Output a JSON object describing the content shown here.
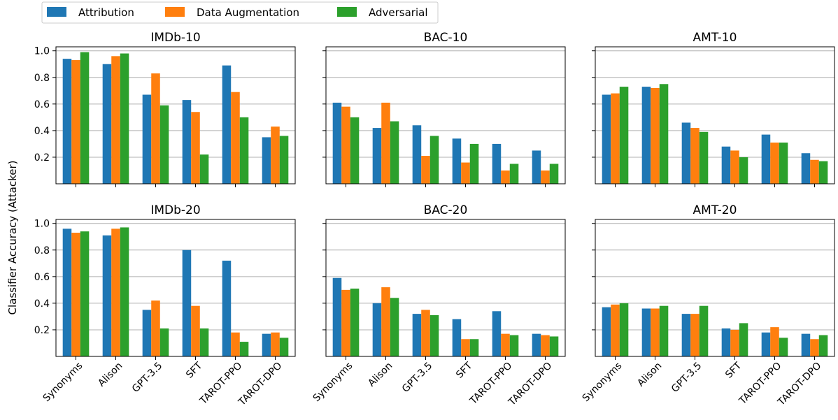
{
  "chart_data": {
    "type": "bar",
    "ylabel": "Classifier Accuracy (Attacker)",
    "legend_position": "top-left",
    "grid": "y",
    "ylim": [
      0,
      1.03
    ],
    "yticks": [
      "0.2",
      "0.4",
      "0.6",
      "0.8",
      "1.0"
    ],
    "categories": [
      "Synonyms",
      "Alison",
      "GPT-3.5",
      "SFT",
      "TAROT-PPO",
      "TAROT-DPO"
    ],
    "series": [
      {
        "name": "Attribution",
        "color": "#1f77b4"
      },
      {
        "name": "Data Augmentation",
        "color": "#ff7f0e"
      },
      {
        "name": "Adversarial",
        "color": "#2ca02c"
      }
    ],
    "panels": [
      {
        "title": "IMDb-10",
        "values": [
          [
            0.94,
            0.9,
            0.67,
            0.63,
            0.89,
            0.35
          ],
          [
            0.93,
            0.96,
            0.83,
            0.54,
            0.69,
            0.43
          ],
          [
            0.99,
            0.98,
            0.59,
            0.22,
            0.5,
            0.36
          ]
        ]
      },
      {
        "title": "BAC-10",
        "values": [
          [
            0.61,
            0.42,
            0.44,
            0.34,
            0.3,
            0.25
          ],
          [
            0.58,
            0.61,
            0.21,
            0.16,
            0.1,
            0.1
          ],
          [
            0.5,
            0.47,
            0.36,
            0.3,
            0.15,
            0.15
          ]
        ]
      },
      {
        "title": "AMT-10",
        "values": [
          [
            0.67,
            0.73,
            0.46,
            0.28,
            0.37,
            0.23
          ],
          [
            0.68,
            0.72,
            0.42,
            0.25,
            0.31,
            0.18
          ],
          [
            0.73,
            0.75,
            0.39,
            0.2,
            0.31,
            0.17
          ]
        ]
      },
      {
        "title": "IMDb-20",
        "values": [
          [
            0.96,
            0.91,
            0.35,
            0.8,
            0.72,
            0.17
          ],
          [
            0.93,
            0.96,
            0.42,
            0.38,
            0.18,
            0.18
          ],
          [
            0.94,
            0.97,
            0.21,
            0.21,
            0.11,
            0.14
          ]
        ]
      },
      {
        "title": "BAC-20",
        "values": [
          [
            0.59,
            0.4,
            0.32,
            0.28,
            0.34,
            0.17
          ],
          [
            0.5,
            0.52,
            0.35,
            0.13,
            0.17,
            0.16
          ],
          [
            0.51,
            0.44,
            0.31,
            0.13,
            0.16,
            0.15
          ]
        ]
      },
      {
        "title": "AMT-20",
        "values": [
          [
            0.37,
            0.36,
            0.32,
            0.21,
            0.18,
            0.17
          ],
          [
            0.39,
            0.36,
            0.32,
            0.2,
            0.22,
            0.13
          ],
          [
            0.4,
            0.38,
            0.38,
            0.25,
            0.14,
            0.16
          ]
        ]
      }
    ]
  }
}
